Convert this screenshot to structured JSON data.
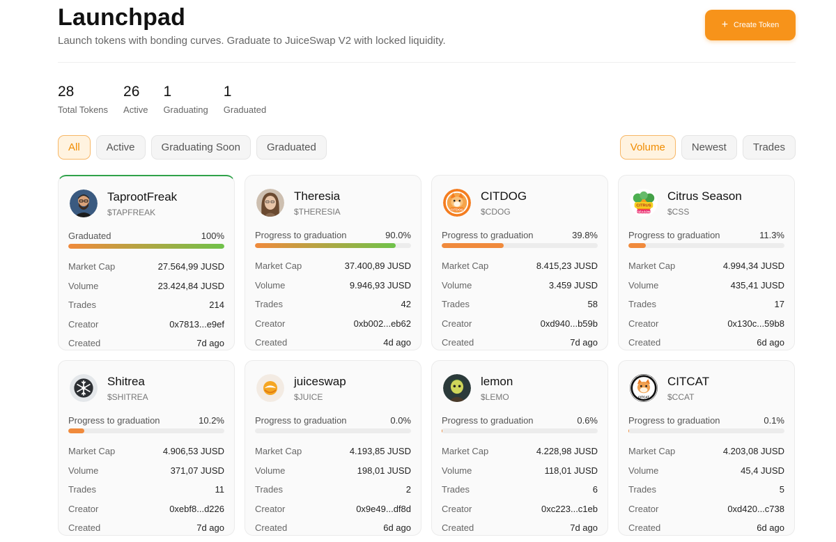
{
  "header": {
    "title": "Launchpad",
    "subtitle": "Launch tokens with bonding curves. Graduate to JuiceSwap V2 with locked liquidity.",
    "create_label": "Create Token",
    "create_icon": "plus-icon"
  },
  "stats": [
    {
      "value": "28",
      "label": "Total Tokens"
    },
    {
      "value": "26",
      "label": "Active"
    },
    {
      "value": "1",
      "label": "Graduating"
    },
    {
      "value": "1",
      "label": "Graduated"
    }
  ],
  "filters": [
    {
      "label": "All",
      "active": true
    },
    {
      "label": "Active",
      "active": false
    },
    {
      "label": "Graduating Soon",
      "active": false
    },
    {
      "label": "Graduated",
      "active": false
    }
  ],
  "sorts": [
    {
      "label": "Volume",
      "active": true
    },
    {
      "label": "Newest",
      "active": false
    },
    {
      "label": "Trades",
      "active": false
    }
  ],
  "colors": {
    "accent": "#f7931a",
    "graduated_border": "#2fa24a",
    "progress_orange": "#f08a3c",
    "progress_green": "#6fc24a"
  },
  "row_labels": {
    "market_cap": "Market Cap",
    "volume": "Volume",
    "trades": "Trades",
    "creator": "Creator",
    "created": "Created"
  },
  "tokens": [
    {
      "name": "TaprootFreak",
      "symbol": "$TAPFREAK",
      "progress_label": "Graduated",
      "progress_text": "100%",
      "progress": 100,
      "graduated": true,
      "market_cap": "27.564,99 JUSD",
      "volume": "23.424,84 JUSD",
      "trades": "214",
      "creator": "0x7813...e9ef",
      "created": "7d ago",
      "avatar_icon": "bearded-man-avatar-icon"
    },
    {
      "name": "Theresia",
      "symbol": "$THERESIA",
      "progress_label": "Progress to graduation",
      "progress_text": "90.0%",
      "progress": 90,
      "graduated": false,
      "market_cap": "37.400,89 JUSD",
      "volume": "9.946,93 JUSD",
      "trades": "42",
      "creator": "0xb002...eb62",
      "created": "4d ago",
      "avatar_icon": "woman-portrait-avatar-icon"
    },
    {
      "name": "CITDOG",
      "symbol": "$CDOG",
      "progress_label": "Progress to graduation",
      "progress_text": "39.8%",
      "progress": 39.8,
      "graduated": false,
      "market_cap": "8.415,23 JUSD",
      "volume": "3.459 JUSD",
      "trades": "58",
      "creator": "0xd940...b59b",
      "created": "7d ago",
      "avatar_icon": "shiba-dog-logo-icon"
    },
    {
      "name": "Citrus Season",
      "symbol": "$CSS",
      "progress_label": "Progress to graduation",
      "progress_text": "11.3%",
      "progress": 11.3,
      "graduated": false,
      "market_cap": "4.994,34 JUSD",
      "volume": "435,41 JUSD",
      "trades": "17",
      "creator": "0x130c...59b8",
      "created": "6d ago",
      "avatar_icon": "citrus-season-logo-icon"
    },
    {
      "name": "Shitrea",
      "symbol": "$SHITREA",
      "progress_label": "Progress to graduation",
      "progress_text": "10.2%",
      "progress": 10.2,
      "graduated": false,
      "market_cap": "4.906,53 JUSD",
      "volume": "371,07 JUSD",
      "trades": "11",
      "creator": "0xebf8...d226",
      "created": "7d ago",
      "avatar_icon": "snowflake-logo-icon"
    },
    {
      "name": "juiceswap",
      "symbol": "$JUICE",
      "progress_label": "Progress to graduation",
      "progress_text": "0.0%",
      "progress": 0,
      "graduated": false,
      "market_cap": "4.193,85 JUSD",
      "volume": "198,01 JUSD",
      "trades": "2",
      "creator": "0x9e49...df8d",
      "created": "6d ago",
      "avatar_icon": "juiceswap-logo-icon"
    },
    {
      "name": "lemon",
      "symbol": "$LEMO",
      "progress_label": "Progress to graduation",
      "progress_text": "0.6%",
      "progress": 0.6,
      "graduated": false,
      "market_cap": "4.228,98 JUSD",
      "volume": "118,01 JUSD",
      "trades": "6",
      "creator": "0xc223...c1eb",
      "created": "7d ago",
      "avatar_icon": "lemon-character-avatar-icon"
    },
    {
      "name": "CITCAT",
      "symbol": "$CCAT",
      "progress_label": "Progress to graduation",
      "progress_text": "0.1%",
      "progress": 0.1,
      "graduated": false,
      "market_cap": "4.203,08 JUSD",
      "volume": "45,4 JUSD",
      "trades": "5",
      "creator": "0xd420...c738",
      "created": "6d ago",
      "avatar_icon": "citcat-logo-icon"
    }
  ]
}
